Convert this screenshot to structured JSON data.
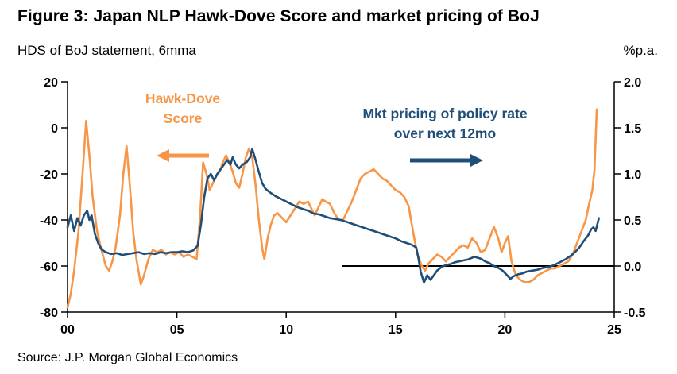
{
  "source": "Source: J.P. Morgan Global Economics",
  "chart_data": {
    "type": "line",
    "title": "Figure 3: Japan NLP Hawk-Dove Score and market pricing of BoJ",
    "left_axis": {
      "label": "HDS of BoJ statement, 6mma",
      "ticks": [
        "20",
        "0",
        "-20",
        "-40",
        "-60",
        "-80"
      ],
      "tick_values": [
        20,
        0,
        -20,
        -40,
        -60,
        -80
      ],
      "range": [
        -80,
        20
      ]
    },
    "right_axis": {
      "label": "%p.a.",
      "ticks": [
        "2.0",
        "1.5",
        "1.0",
        "0.5",
        "0.0",
        "-0.5"
      ],
      "tick_values": [
        2.0,
        1.5,
        1.0,
        0.5,
        0.0,
        -0.5
      ],
      "range": [
        -0.5,
        2.0
      ]
    },
    "x_axis": {
      "ticks": [
        "00",
        "05",
        "10",
        "15",
        "20",
        "25"
      ],
      "tick_values": [
        0,
        5,
        10,
        15,
        20,
        25
      ],
      "range": [
        0,
        25
      ]
    },
    "zero_line": {
      "axis": "right",
      "value": 0.0,
      "x_start": 12.55,
      "x_end": 25,
      "color": "#000000"
    },
    "annotations": [
      {
        "text": "Hawk-Dove\nScore",
        "color": "#F79646",
        "arrow": "left"
      },
      {
        "text": "Mkt pricing of policy rate\nover next 12mo",
        "color": "#1F4E79",
        "arrow": "right"
      }
    ],
    "series": [
      {
        "id": "hawk-dove-score",
        "name": "Hawk-Dove Score",
        "axis": "left",
        "color": "#F79646",
        "points": [
          [
            0.0,
            -78
          ],
          [
            0.15,
            -72
          ],
          [
            0.3,
            -62
          ],
          [
            0.5,
            -45
          ],
          [
            0.7,
            -18
          ],
          [
            0.85,
            3
          ],
          [
            1.0,
            -12
          ],
          [
            1.15,
            -30
          ],
          [
            1.35,
            -45
          ],
          [
            1.55,
            -53
          ],
          [
            1.75,
            -60
          ],
          [
            1.9,
            -62
          ],
          [
            2.05,
            -58
          ],
          [
            2.2,
            -52
          ],
          [
            2.4,
            -38
          ],
          [
            2.55,
            -20
          ],
          [
            2.7,
            -8
          ],
          [
            2.85,
            -25
          ],
          [
            3.0,
            -45
          ],
          [
            3.15,
            -57
          ],
          [
            3.35,
            -68
          ],
          [
            3.5,
            -64
          ],
          [
            3.7,
            -57
          ],
          [
            3.9,
            -53
          ],
          [
            4.1,
            -54
          ],
          [
            4.3,
            -53
          ],
          [
            4.5,
            -55
          ],
          [
            4.7,
            -54
          ],
          [
            4.9,
            -55
          ],
          [
            5.1,
            -54
          ],
          [
            5.3,
            -56
          ],
          [
            5.5,
            -55
          ],
          [
            5.7,
            -56
          ],
          [
            5.9,
            -57
          ],
          [
            6.05,
            -40
          ],
          [
            6.2,
            -15
          ],
          [
            6.35,
            -20
          ],
          [
            6.5,
            -27
          ],
          [
            6.65,
            -24
          ],
          [
            6.8,
            -21
          ],
          [
            6.95,
            -19
          ],
          [
            7.1,
            -15
          ],
          [
            7.25,
            -12
          ],
          [
            7.4,
            -15
          ],
          [
            7.55,
            -19
          ],
          [
            7.7,
            -24
          ],
          [
            7.85,
            -26
          ],
          [
            8.0,
            -20
          ],
          [
            8.15,
            -13
          ],
          [
            8.3,
            -9
          ],
          [
            8.45,
            -13
          ],
          [
            8.6,
            -25
          ],
          [
            8.75,
            -40
          ],
          [
            8.9,
            -52
          ],
          [
            9.0,
            -57
          ],
          [
            9.15,
            -48
          ],
          [
            9.3,
            -42
          ],
          [
            9.45,
            -38
          ],
          [
            9.6,
            -37
          ],
          [
            9.8,
            -39
          ],
          [
            10.0,
            -41
          ],
          [
            10.2,
            -38
          ],
          [
            10.4,
            -35
          ],
          [
            10.6,
            -32
          ],
          [
            10.8,
            -33
          ],
          [
            11.0,
            -32
          ],
          [
            11.15,
            -35
          ],
          [
            11.3,
            -38
          ],
          [
            11.5,
            -34
          ],
          [
            11.65,
            -31
          ],
          [
            11.8,
            -32
          ],
          [
            12.0,
            -33
          ],
          [
            12.2,
            -37
          ],
          [
            12.4,
            -40
          ],
          [
            12.6,
            -40
          ],
          [
            12.8,
            -36
          ],
          [
            13.0,
            -32
          ],
          [
            13.2,
            -27
          ],
          [
            13.4,
            -22
          ],
          [
            13.6,
            -20
          ],
          [
            13.8,
            -19
          ],
          [
            14.0,
            -18
          ],
          [
            14.2,
            -20
          ],
          [
            14.4,
            -22
          ],
          [
            14.6,
            -23
          ],
          [
            14.8,
            -25
          ],
          [
            15.0,
            -27
          ],
          [
            15.2,
            -28
          ],
          [
            15.4,
            -30
          ],
          [
            15.6,
            -34
          ],
          [
            15.8,
            -45
          ],
          [
            16.0,
            -55
          ],
          [
            16.2,
            -60
          ],
          [
            16.35,
            -62
          ],
          [
            16.5,
            -59
          ],
          [
            16.7,
            -57
          ],
          [
            16.9,
            -55
          ],
          [
            17.1,
            -56
          ],
          [
            17.3,
            -58
          ],
          [
            17.5,
            -56
          ],
          [
            17.7,
            -54
          ],
          [
            17.9,
            -52
          ],
          [
            18.1,
            -51
          ],
          [
            18.3,
            -52
          ],
          [
            18.5,
            -48
          ],
          [
            18.7,
            -50
          ],
          [
            18.9,
            -54
          ],
          [
            19.1,
            -53
          ],
          [
            19.3,
            -48
          ],
          [
            19.5,
            -43
          ],
          [
            19.7,
            -48
          ],
          [
            19.85,
            -54
          ],
          [
            20.0,
            -50
          ],
          [
            20.15,
            -47
          ],
          [
            20.3,
            -58
          ],
          [
            20.5,
            -64
          ],
          [
            20.7,
            -66
          ],
          [
            20.9,
            -67
          ],
          [
            21.1,
            -67
          ],
          [
            21.3,
            -66
          ],
          [
            21.5,
            -64
          ],
          [
            21.7,
            -63
          ],
          [
            21.9,
            -62
          ],
          [
            22.1,
            -61
          ],
          [
            22.3,
            -61
          ],
          [
            22.5,
            -60
          ],
          [
            22.7,
            -59
          ],
          [
            22.9,
            -58
          ],
          [
            23.1,
            -55
          ],
          [
            23.3,
            -50
          ],
          [
            23.5,
            -45
          ],
          [
            23.7,
            -40
          ],
          [
            23.85,
            -33
          ],
          [
            24.0,
            -27
          ],
          [
            24.1,
            -18
          ],
          [
            24.2,
            8
          ]
        ]
      },
      {
        "id": "policy-rate-pricing",
        "name": "Mkt pricing of policy rate over next 12mo",
        "axis": "right",
        "color": "#1F4E79",
        "points": [
          [
            0.0,
            0.42
          ],
          [
            0.15,
            0.55
          ],
          [
            0.3,
            0.38
          ],
          [
            0.45,
            0.52
          ],
          [
            0.6,
            0.44
          ],
          [
            0.75,
            0.55
          ],
          [
            0.9,
            0.6
          ],
          [
            1.0,
            0.5
          ],
          [
            1.1,
            0.55
          ],
          [
            1.25,
            0.35
          ],
          [
            1.4,
            0.25
          ],
          [
            1.55,
            0.18
          ],
          [
            1.75,
            0.15
          ],
          [
            2.0,
            0.13
          ],
          [
            2.25,
            0.14
          ],
          [
            2.5,
            0.12
          ],
          [
            2.75,
            0.13
          ],
          [
            3.0,
            0.14
          ],
          [
            3.25,
            0.15
          ],
          [
            3.5,
            0.13
          ],
          [
            3.75,
            0.14
          ],
          [
            4.0,
            0.13
          ],
          [
            4.25,
            0.15
          ],
          [
            4.5,
            0.14
          ],
          [
            4.75,
            0.15
          ],
          [
            5.0,
            0.15
          ],
          [
            5.25,
            0.16
          ],
          [
            5.5,
            0.15
          ],
          [
            5.75,
            0.17
          ],
          [
            5.95,
            0.22
          ],
          [
            6.1,
            0.45
          ],
          [
            6.25,
            0.75
          ],
          [
            6.4,
            0.95
          ],
          [
            6.55,
            1.0
          ],
          [
            6.7,
            0.93
          ],
          [
            6.85,
            1.0
          ],
          [
            7.0,
            1.05
          ],
          [
            7.15,
            1.1
          ],
          [
            7.3,
            1.15
          ],
          [
            7.45,
            1.1
          ],
          [
            7.55,
            1.18
          ],
          [
            7.7,
            1.1
          ],
          [
            7.85,
            1.06
          ],
          [
            8.0,
            1.1
          ],
          [
            8.2,
            1.13
          ],
          [
            8.35,
            1.18
          ],
          [
            8.45,
            1.27
          ],
          [
            8.6,
            1.15
          ],
          [
            8.75,
            1.02
          ],
          [
            8.9,
            0.9
          ],
          [
            9.05,
            0.84
          ],
          [
            9.25,
            0.8
          ],
          [
            9.5,
            0.76
          ],
          [
            9.75,
            0.73
          ],
          [
            10.0,
            0.7
          ],
          [
            10.25,
            0.67
          ],
          [
            10.5,
            0.64
          ],
          [
            10.75,
            0.62
          ],
          [
            11.0,
            0.6
          ],
          [
            11.25,
            0.57
          ],
          [
            11.5,
            0.56
          ],
          [
            11.75,
            0.54
          ],
          [
            12.0,
            0.52
          ],
          [
            12.25,
            0.51
          ],
          [
            12.5,
            0.5
          ],
          [
            12.75,
            0.48
          ],
          [
            13.0,
            0.46
          ],
          [
            13.25,
            0.44
          ],
          [
            13.5,
            0.42
          ],
          [
            13.75,
            0.4
          ],
          [
            14.0,
            0.38
          ],
          [
            14.25,
            0.36
          ],
          [
            14.5,
            0.34
          ],
          [
            14.75,
            0.32
          ],
          [
            15.0,
            0.3
          ],
          [
            15.25,
            0.27
          ],
          [
            15.5,
            0.25
          ],
          [
            15.75,
            0.23
          ],
          [
            15.95,
            0.2
          ],
          [
            16.05,
            0.08
          ],
          [
            16.15,
            -0.06
          ],
          [
            16.3,
            -0.18
          ],
          [
            16.45,
            -0.1
          ],
          [
            16.6,
            -0.15
          ],
          [
            16.75,
            -0.1
          ],
          [
            16.9,
            -0.05
          ],
          [
            17.1,
            -0.01
          ],
          [
            17.3,
            0.01
          ],
          [
            17.5,
            0.02
          ],
          [
            17.7,
            0.04
          ],
          [
            17.9,
            0.05
          ],
          [
            18.1,
            0.06
          ],
          [
            18.3,
            0.07
          ],
          [
            18.6,
            0.1
          ],
          [
            18.9,
            0.08
          ],
          [
            19.1,
            0.05
          ],
          [
            19.3,
            0.03
          ],
          [
            19.5,
            0.0
          ],
          [
            19.7,
            -0.02
          ],
          [
            19.9,
            -0.05
          ],
          [
            20.1,
            -0.1
          ],
          [
            20.25,
            -0.14
          ],
          [
            20.4,
            -0.11
          ],
          [
            20.6,
            -0.09
          ],
          [
            20.8,
            -0.08
          ],
          [
            21.0,
            -0.06
          ],
          [
            21.25,
            -0.05
          ],
          [
            21.5,
            -0.04
          ],
          [
            21.75,
            -0.02
          ],
          [
            22.0,
            -0.01
          ],
          [
            22.25,
            0.01
          ],
          [
            22.5,
            0.04
          ],
          [
            22.75,
            0.07
          ],
          [
            23.0,
            0.11
          ],
          [
            23.2,
            0.15
          ],
          [
            23.4,
            0.2
          ],
          [
            23.6,
            0.27
          ],
          [
            23.8,
            0.33
          ],
          [
            23.95,
            0.4
          ],
          [
            24.05,
            0.42
          ],
          [
            24.15,
            0.38
          ],
          [
            24.3,
            0.52
          ]
        ]
      }
    ]
  }
}
